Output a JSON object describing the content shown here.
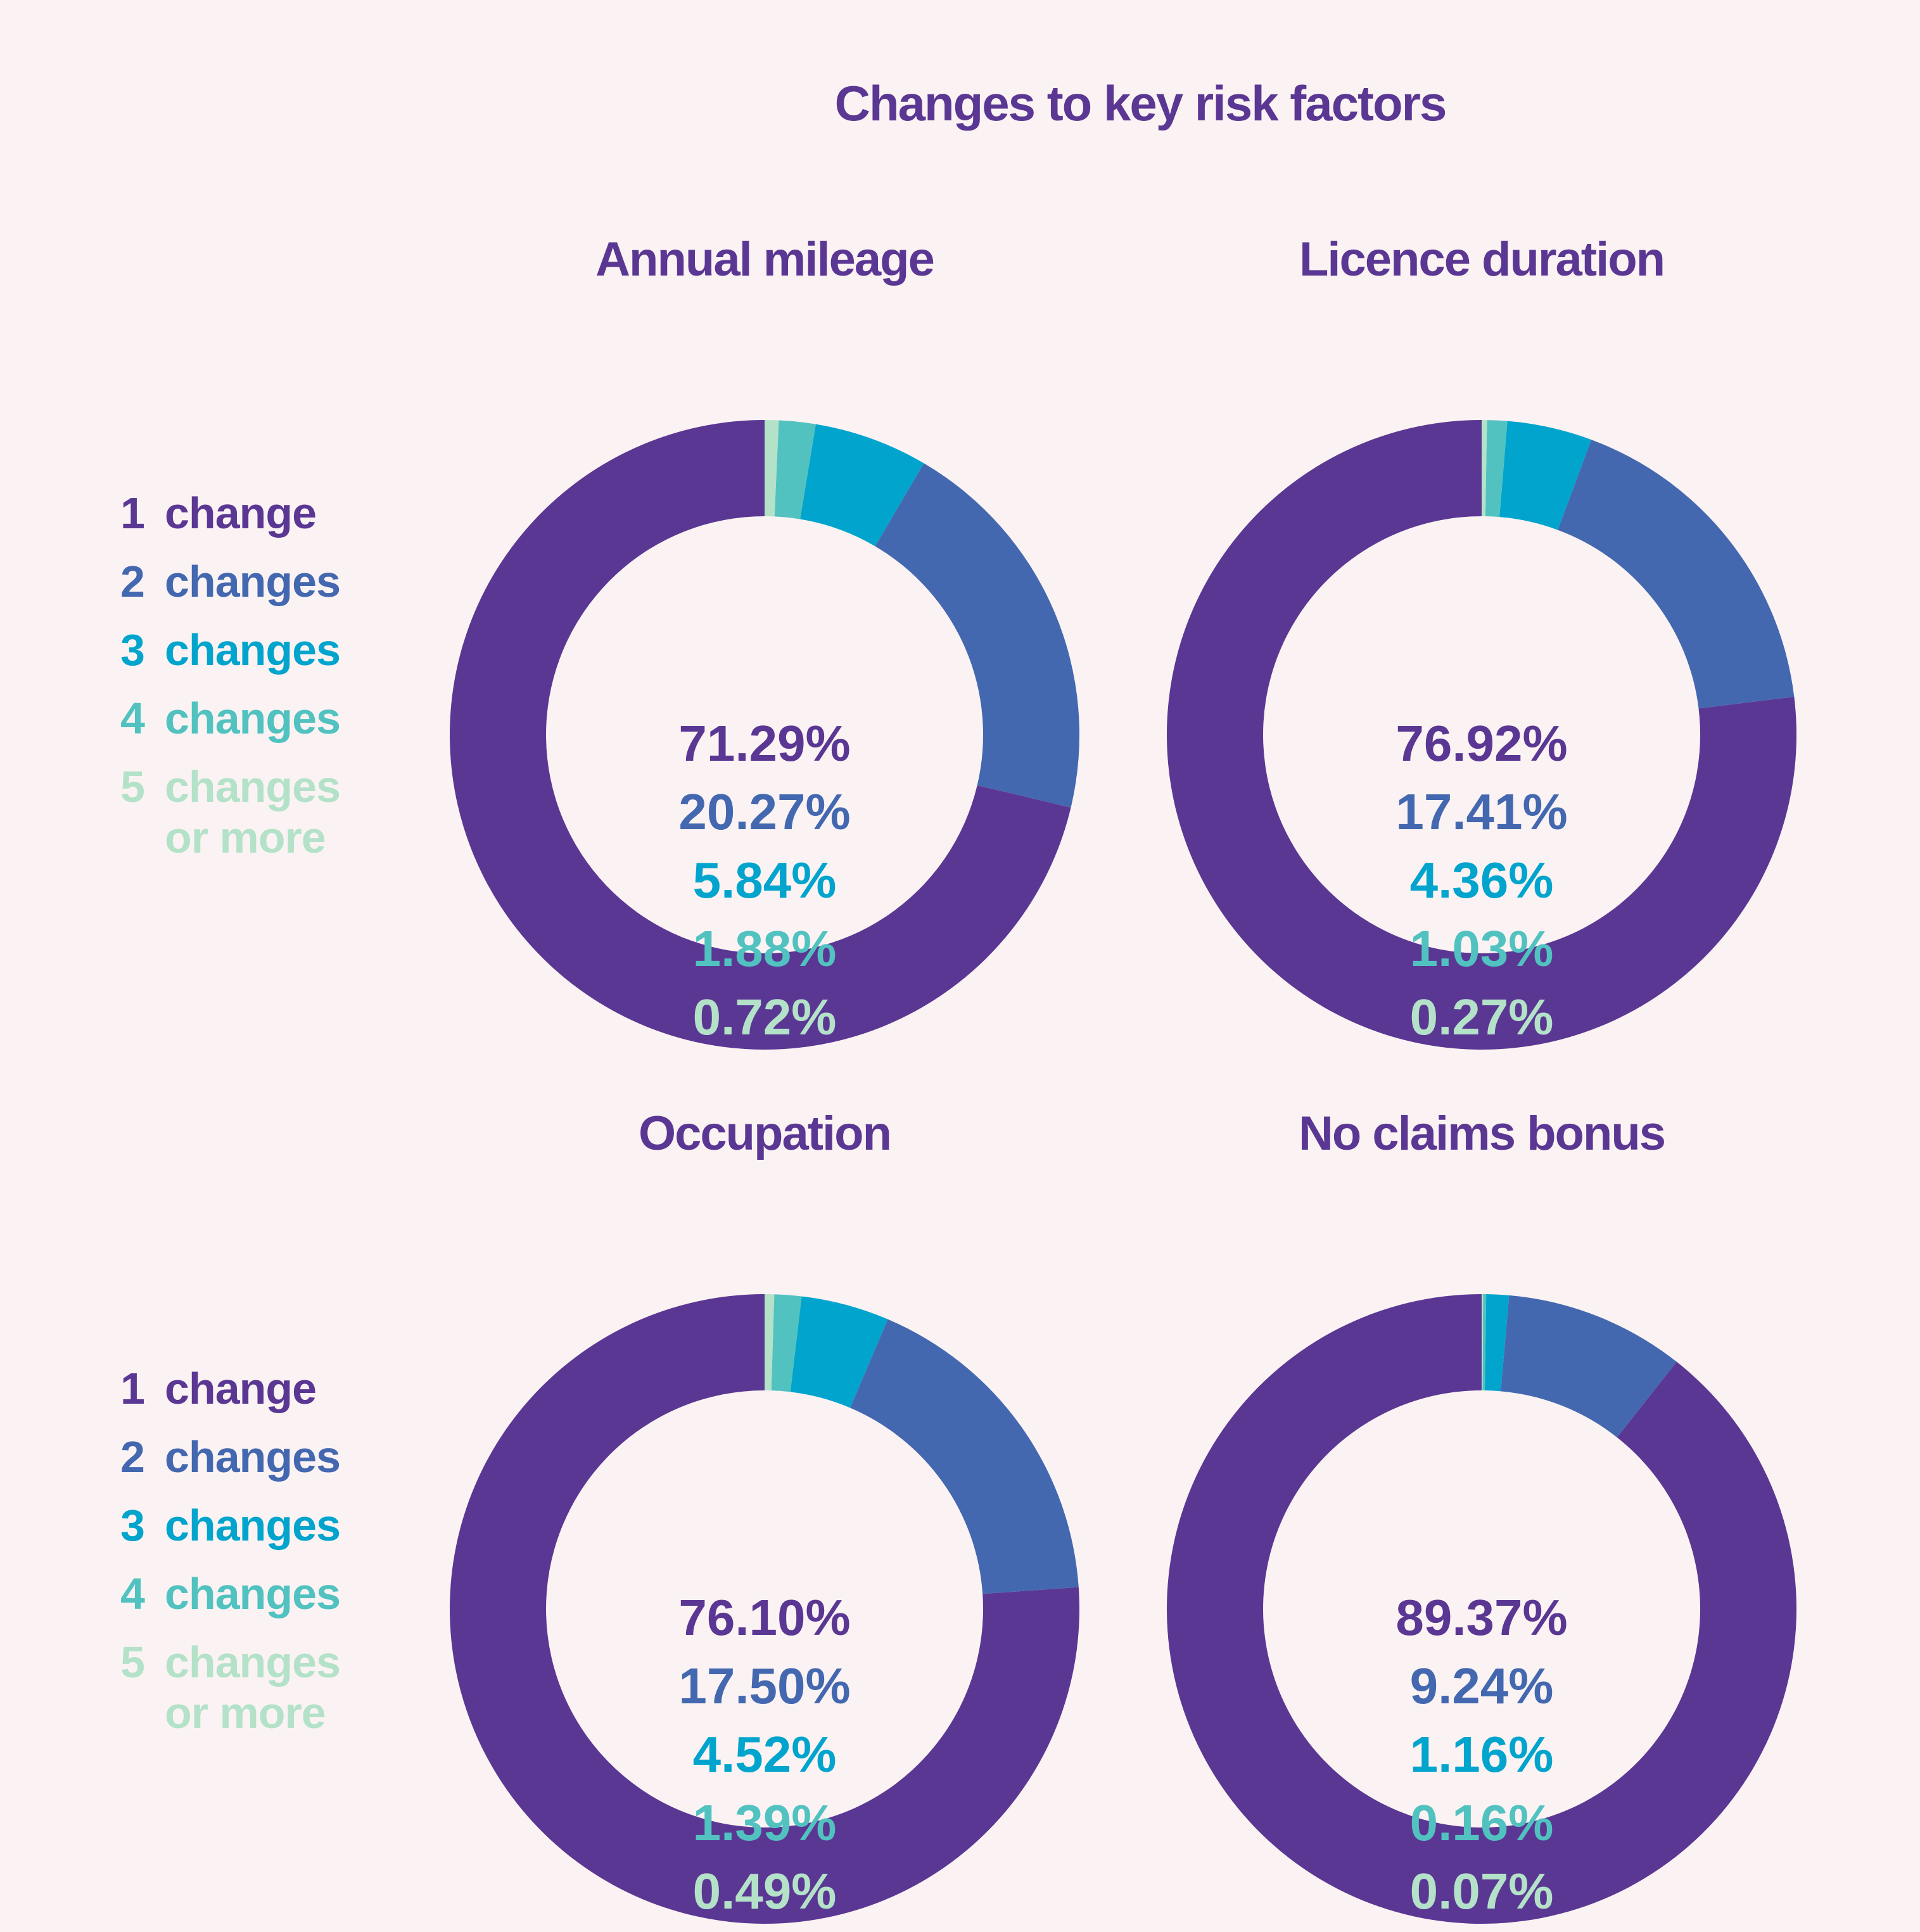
{
  "title": "Changes to key risk factors",
  "colors": [
    "#5b3794",
    "#4468b0",
    "#00a4cc",
    "#51c2c0",
    "#b4e2c9"
  ],
  "legend": [
    {
      "num": "1",
      "label": "change"
    },
    {
      "num": "2",
      "label": "changes"
    },
    {
      "num": "3",
      "label": "changes"
    },
    {
      "num": "4",
      "label": "changes"
    },
    {
      "num": "5",
      "label": "changes\nor more"
    }
  ],
  "chart_data": [
    {
      "type": "pie",
      "title": "Annual mileage",
      "categories": [
        "1 change",
        "2 changes",
        "3 changes",
        "4 changes",
        "5 changes or more"
      ],
      "values": [
        71.29,
        20.27,
        5.84,
        1.88,
        0.72
      ],
      "labels": [
        "71.29%",
        "20.27%",
        "5.84%",
        "1.88%",
        "0.72%"
      ]
    },
    {
      "type": "pie",
      "title": "Licence duration",
      "categories": [
        "1 change",
        "2 changes",
        "3 changes",
        "4 changes",
        "5 changes or more"
      ],
      "values": [
        76.92,
        17.41,
        4.36,
        1.03,
        0.27
      ],
      "labels": [
        "76.92%",
        "17.41%",
        "4.36%",
        "1.03%",
        "0.27%"
      ]
    },
    {
      "type": "pie",
      "title": "Occupation",
      "categories": [
        "1 change",
        "2 changes",
        "3 changes",
        "4 changes",
        "5 changes or more"
      ],
      "values": [
        76.1,
        17.5,
        4.52,
        1.39,
        0.49
      ],
      "labels": [
        "76.10%",
        "17.50%",
        "4.52%",
        "1.39%",
        "0.49%"
      ]
    },
    {
      "type": "pie",
      "title": "No claims bonus",
      "categories": [
        "1 change",
        "2 changes",
        "3 changes",
        "4 changes",
        "5 changes or more"
      ],
      "values": [
        89.37,
        9.24,
        1.16,
        0.16,
        0.07
      ],
      "labels": [
        "89.37%",
        "9.24%",
        "1.16%",
        "0.16%",
        "0.07%"
      ]
    }
  ]
}
